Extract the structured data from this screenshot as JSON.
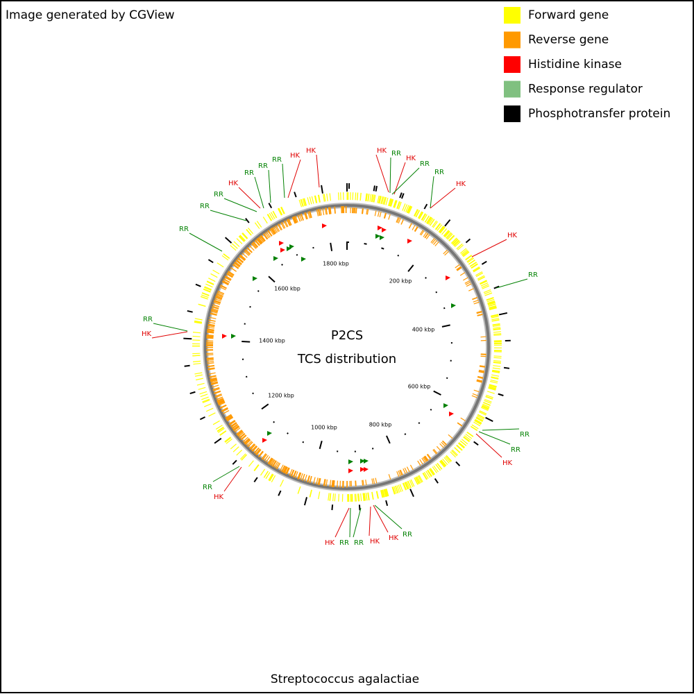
{
  "header": {
    "title": "Image generated by CGView"
  },
  "legend": [
    {
      "label": "Forward gene",
      "color": "#ffff00"
    },
    {
      "label": "Reverse gene",
      "color": "#ff9900"
    },
    {
      "label": "Histidine kinase",
      "color": "#ff0000"
    },
    {
      "label": "Response regulator",
      "color": "#80c080"
    },
    {
      "label": "Phosphotransfer protein",
      "color": "#000000"
    }
  ],
  "center": {
    "title": "P2CS",
    "subtitle": "TCS distribution"
  },
  "ticks": [
    "200 kbp",
    "400 kbp",
    "600 kbp",
    "800 kbp",
    "1000 kbp",
    "1200 kbp",
    "1400 kbp",
    "1600 kbp",
    "1800 kbp"
  ],
  "features": [
    {
      "text": "HK",
      "color": "#e00000"
    },
    {
      "text": "HK",
      "color": "#e00000"
    },
    {
      "text": "RR",
      "color": "#008000"
    },
    {
      "text": "RR",
      "color": "#008000"
    },
    {
      "text": "RR",
      "color": "#008000"
    },
    {
      "text": "HK",
      "color": "#e00000"
    },
    {
      "text": "RR",
      "color": "#008000"
    },
    {
      "text": "RR",
      "color": "#008000"
    },
    {
      "text": "RR",
      "color": "#008000"
    },
    {
      "text": "RR",
      "color": "#008000"
    },
    {
      "text": "HK",
      "color": "#e00000"
    },
    {
      "text": "HK",
      "color": "#e00000"
    },
    {
      "text": "RR",
      "color": "#008000"
    },
    {
      "text": "HK",
      "color": "#e00000"
    },
    {
      "text": "RR",
      "color": "#008000"
    },
    {
      "text": "RR",
      "color": "#008000"
    },
    {
      "text": "HK",
      "color": "#e00000"
    },
    {
      "text": "HK",
      "color": "#e00000"
    },
    {
      "text": "RR",
      "color": "#008000"
    },
    {
      "text": "RR",
      "color": "#008000"
    },
    {
      "text": "RR",
      "color": "#008000"
    },
    {
      "text": "HK",
      "color": "#e00000"
    },
    {
      "text": "RR",
      "color": "#008000"
    },
    {
      "text": "HK",
      "color": "#e00000"
    },
    {
      "text": "HK",
      "color": "#e00000"
    },
    {
      "text": "RR",
      "color": "#008000"
    },
    {
      "text": "RR",
      "color": "#008000"
    },
    {
      "text": "HK",
      "color": "#e00000"
    },
    {
      "text": "HK",
      "color": "#e00000"
    },
    {
      "text": "RR",
      "color": "#008000"
    }
  ],
  "footer": {
    "organism": "Streptococcus agalactiae"
  }
}
